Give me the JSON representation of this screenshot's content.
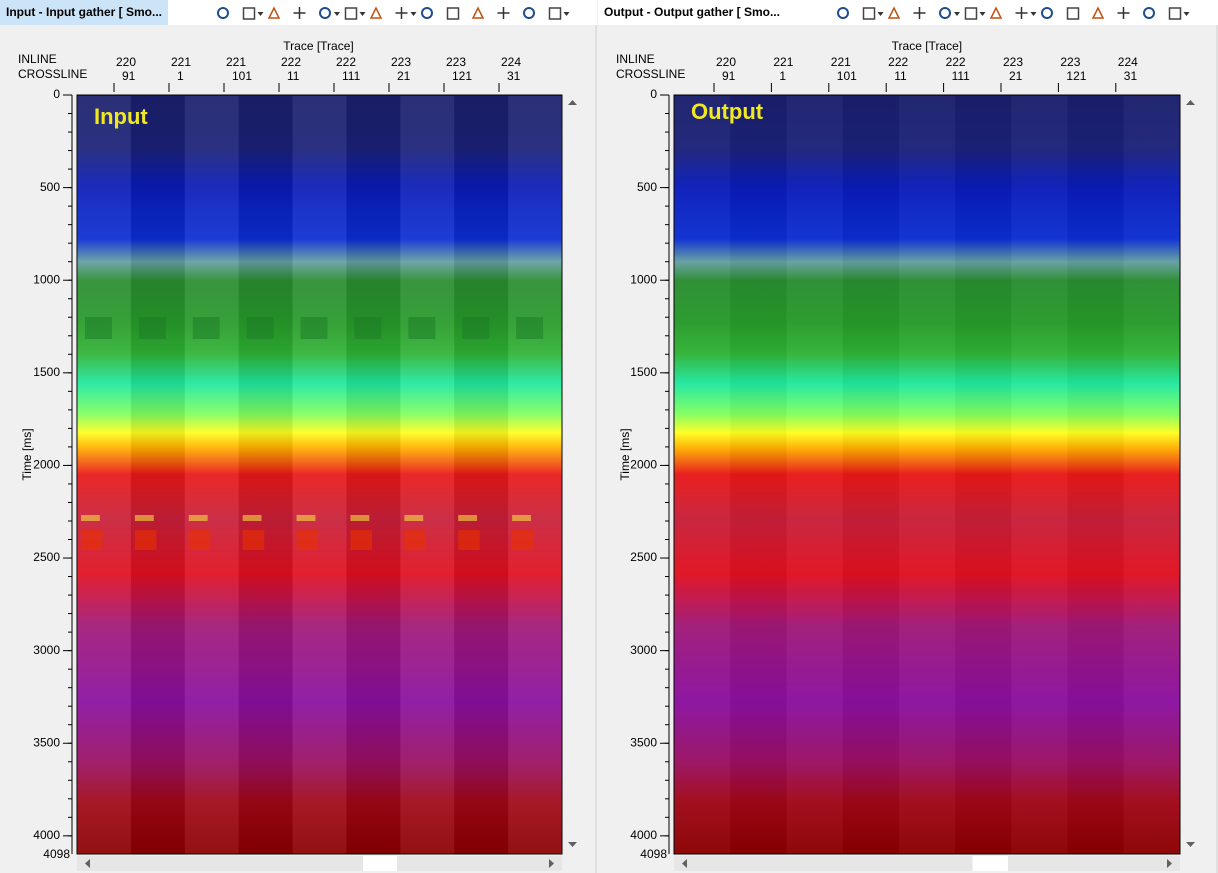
{
  "panels": [
    {
      "title": "Input - Input gather [ Smo...",
      "overlay_label": "Input",
      "x_axis_label": "Trace [Trace]",
      "inline_label": "INLINE",
      "crossline_label": "CROSSLINE",
      "inline_values": [
        220,
        221,
        221,
        222,
        222,
        223,
        223,
        224
      ],
      "crossline_values": [
        91,
        1,
        101,
        11,
        111,
        21,
        121,
        31
      ],
      "y_axis_label": "Time [ms]",
      "ylim": [
        0,
        4098
      ],
      "yticks": [
        0,
        500,
        1000,
        1500,
        2000,
        2500,
        3000,
        3500,
        4000
      ]
    },
    {
      "title": "Output - Output gather [ Smo...",
      "overlay_label": "Output",
      "x_axis_label": "Trace [Trace]",
      "inline_label": "INLINE",
      "crossline_label": "CROSSLINE",
      "inline_values": [
        220,
        221,
        221,
        222,
        222,
        223,
        223,
        224
      ],
      "crossline_values": [
        91,
        1,
        101,
        11,
        111,
        21,
        121,
        31
      ],
      "y_axis_label": "Time [ms]",
      "ylim": [
        0,
        4098
      ],
      "yticks": [
        0,
        500,
        1000,
        1500,
        2000,
        2500,
        3000,
        3500,
        4000
      ]
    }
  ]
}
